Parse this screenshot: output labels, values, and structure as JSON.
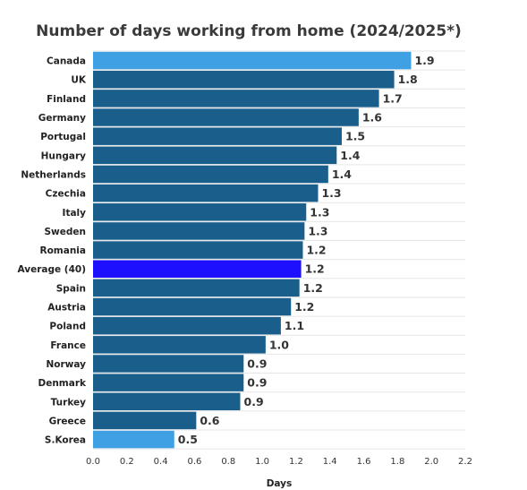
{
  "chart_data": {
    "type": "bar",
    "orientation": "horizontal",
    "title": "Number of days working from home (2024/2025*)",
    "xlabel": "Days",
    "ylabel": "",
    "xlim": [
      0,
      2.2
    ],
    "xticks": [
      "0.0",
      "0.2",
      "0.4",
      "0.6",
      "0.8",
      "1.0",
      "1.2",
      "1.4",
      "1.6",
      "1.8",
      "2.0",
      "2.2"
    ],
    "grid": true,
    "categories": [
      "Canada",
      "UK",
      "Finland",
      "Germany",
      "Portugal",
      "Hungary",
      "Netherlands",
      "Czechia",
      "Italy",
      "Sweden",
      "Romania",
      "Average (40)",
      "Spain",
      "Austria",
      "Poland",
      "France",
      "Norway",
      "Denmark",
      "Turkey",
      "Greece",
      "S.Korea"
    ],
    "values": [
      1.88,
      1.78,
      1.69,
      1.57,
      1.47,
      1.44,
      1.39,
      1.33,
      1.26,
      1.25,
      1.24,
      1.23,
      1.22,
      1.17,
      1.11,
      1.02,
      0.89,
      0.89,
      0.87,
      0.61,
      0.48
    ],
    "labels": [
      "1.9",
      "1.8",
      "1.7",
      "1.6",
      "1.5",
      "1.4",
      "1.4",
      "1.3",
      "1.3",
      "1.3",
      "1.2",
      "1.2",
      "1.2",
      "1.2",
      "1.1",
      "1.0",
      "0.9",
      "0.9",
      "0.9",
      "0.6",
      "0.5"
    ],
    "colors": {
      "default": "#1a5f8c",
      "highlight": "#3fa0e4",
      "average": "#1c10ff"
    },
    "bar_colors": [
      "highlight",
      "default",
      "default",
      "default",
      "default",
      "default",
      "default",
      "default",
      "default",
      "default",
      "default",
      "average",
      "default",
      "default",
      "default",
      "default",
      "default",
      "default",
      "default",
      "default",
      "highlight"
    ]
  }
}
